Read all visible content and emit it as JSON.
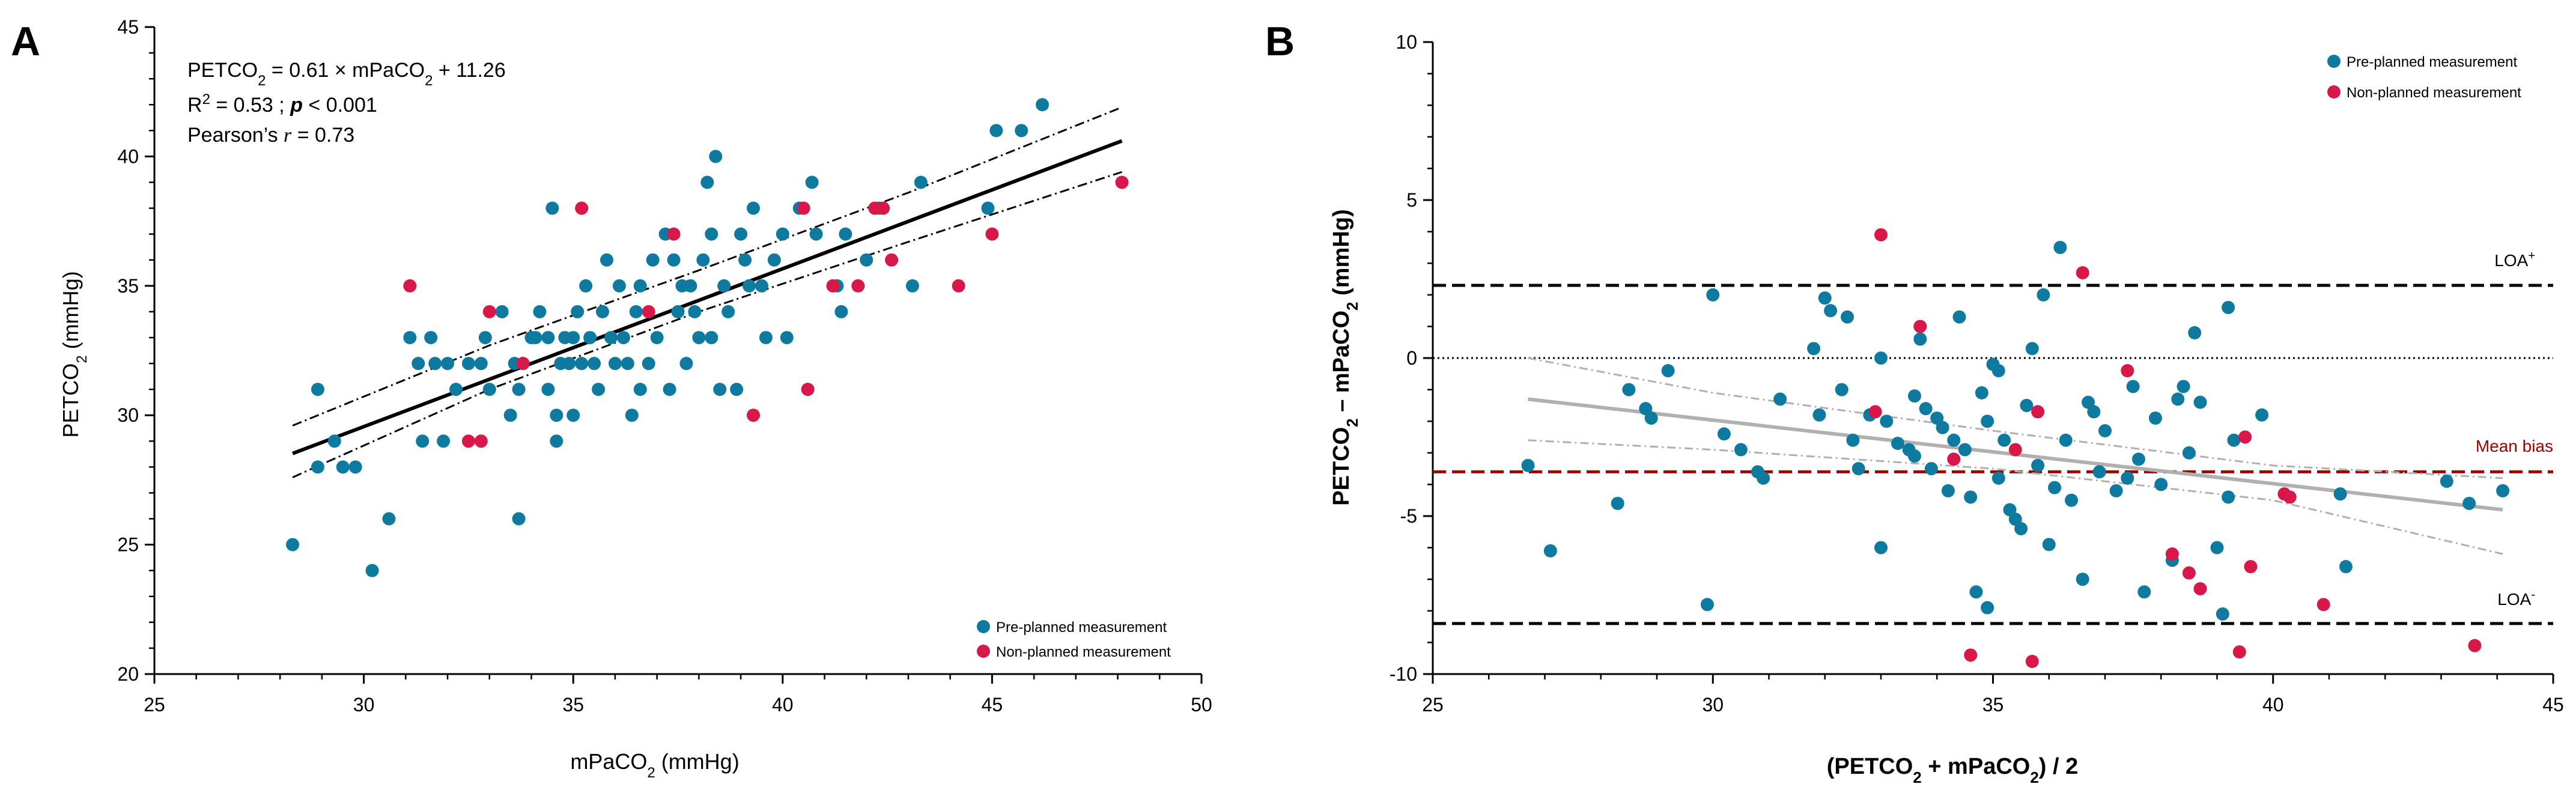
{
  "colors": {
    "pre_planned": "#0f7aa0",
    "non_planned": "#d9184a",
    "mean_bias": "#a00000",
    "trend": "#b0b0b0"
  },
  "chart_data": [
    {
      "type": "scatter",
      "panel_letter": "A",
      "xlabel": {
        "main": "mPaCO",
        "sub": "2",
        "post": " (mmHg)"
      },
      "ylabel": {
        "main": "PETCO",
        "sub": "2",
        "post": " (mmHg)"
      },
      "xlim": [
        25,
        50
      ],
      "ylim": [
        20,
        45
      ],
      "xticks": [
        25,
        30,
        35,
        40,
        45,
        50
      ],
      "yticks": [
        20,
        25,
        30,
        35,
        40,
        45
      ],
      "annotations": {
        "equation": {
          "a": "PETCO",
          "sub": "2",
          "b": " = 0.61 × mPaCO",
          "sub2": "2",
          "c": " + 11.26"
        },
        "r2": {
          "a": "R",
          "sup": "2",
          "b": " = 0.53 ; ",
          "p": "p",
          "c": " < 0.001"
        },
        "pearson": {
          "a": "Pearson’s ",
          "r": "r",
          "b": " = 0.73"
        }
      },
      "legend": {
        "placement": "bottom-right",
        "pre": "Pre-planned measurement",
        "non": "Non-planned measurement"
      },
      "regression": {
        "slope": 0.61,
        "intercept": 11.26,
        "x_range": [
          28.3,
          48.1
        ]
      },
      "ci_upper": [
        [
          28.3,
          29.6
        ],
        [
          33,
          32.7
        ],
        [
          38,
          35.6
        ],
        [
          43,
          38.6
        ],
        [
          48.1,
          41.9
        ]
      ],
      "ci_lower": [
        [
          28.3,
          27.6
        ],
        [
          33,
          31.0
        ],
        [
          38,
          34.0
        ],
        [
          43,
          36.7
        ],
        [
          48.1,
          39.4
        ]
      ],
      "series": [
        {
          "name": "Pre-planned measurement",
          "points": [
            [
              28.3,
              25
            ],
            [
              28.9,
              31
            ],
            [
              28.9,
              28
            ],
            [
              29.3,
              29
            ],
            [
              29.5,
              28
            ],
            [
              29.8,
              28
            ],
            [
              30.2,
              24
            ],
            [
              30.6,
              26
            ],
            [
              31.1,
              33
            ],
            [
              31.3,
              32
            ],
            [
              31.4,
              29
            ],
            [
              31.6,
              33
            ],
            [
              31.7,
              32
            ],
            [
              31.9,
              29
            ],
            [
              32.0,
              32
            ],
            [
              32.2,
              31
            ],
            [
              32.5,
              32
            ],
            [
              32.8,
              32
            ],
            [
              32.9,
              33
            ],
            [
              33.0,
              31
            ],
            [
              33.3,
              34
            ],
            [
              33.5,
              30
            ],
            [
              33.6,
              32
            ],
            [
              33.7,
              26
            ],
            [
              33.7,
              31
            ],
            [
              33.8,
              32
            ],
            [
              34.0,
              33
            ],
            [
              34.1,
              33
            ],
            [
              34.2,
              34
            ],
            [
              34.4,
              33
            ],
            [
              34.4,
              31
            ],
            [
              34.5,
              38
            ],
            [
              34.6,
              30
            ],
            [
              34.6,
              29
            ],
            [
              34.7,
              32
            ],
            [
              34.8,
              33
            ],
            [
              34.9,
              32
            ],
            [
              35.0,
              33
            ],
            [
              35.0,
              30
            ],
            [
              35.1,
              34
            ],
            [
              35.2,
              32
            ],
            [
              35.3,
              35
            ],
            [
              35.4,
              33
            ],
            [
              35.5,
              32
            ],
            [
              35.6,
              31
            ],
            [
              35.7,
              34
            ],
            [
              35.8,
              36
            ],
            [
              35.9,
              33
            ],
            [
              36.0,
              32
            ],
            [
              36.1,
              35
            ],
            [
              36.2,
              33
            ],
            [
              36.3,
              32
            ],
            [
              36.4,
              30
            ],
            [
              36.5,
              34
            ],
            [
              36.6,
              35
            ],
            [
              36.6,
              31
            ],
            [
              36.8,
              32
            ],
            [
              36.9,
              36
            ],
            [
              37.0,
              33
            ],
            [
              37.2,
              37
            ],
            [
              37.3,
              31
            ],
            [
              37.4,
              36
            ],
            [
              37.5,
              34
            ],
            [
              37.6,
              35
            ],
            [
              37.7,
              32
            ],
            [
              37.8,
              35
            ],
            [
              37.9,
              34
            ],
            [
              38.0,
              33
            ],
            [
              38.1,
              36
            ],
            [
              38.2,
              39
            ],
            [
              38.3,
              37
            ],
            [
              38.3,
              33
            ],
            [
              38.4,
              40
            ],
            [
              38.5,
              31
            ],
            [
              38.6,
              35
            ],
            [
              38.7,
              34
            ],
            [
              38.9,
              31
            ],
            [
              39.0,
              37
            ],
            [
              39.1,
              36
            ],
            [
              39.2,
              35
            ],
            [
              39.3,
              38
            ],
            [
              39.5,
              35
            ],
            [
              39.6,
              33
            ],
            [
              39.8,
              36
            ],
            [
              40.0,
              37
            ],
            [
              40.1,
              33
            ],
            [
              40.4,
              38
            ],
            [
              40.7,
              39
            ],
            [
              40.8,
              37
            ],
            [
              41.3,
              35
            ],
            [
              41.4,
              34
            ],
            [
              41.5,
              37
            ],
            [
              42.0,
              36
            ],
            [
              42.3,
              38
            ],
            [
              43.1,
              35
            ],
            [
              43.3,
              39
            ],
            [
              44.9,
              38
            ],
            [
              45.1,
              41
            ],
            [
              45.7,
              41
            ],
            [
              46.2,
              42
            ]
          ]
        },
        {
          "name": "Non-planned measurement",
          "points": [
            [
              31.1,
              35
            ],
            [
              32.5,
              29
            ],
            [
              32.8,
              29
            ],
            [
              33.0,
              34
            ],
            [
              33.8,
              32
            ],
            [
              35.2,
              38
            ],
            [
              36.8,
              34
            ],
            [
              37.4,
              37
            ],
            [
              39.3,
              30
            ],
            [
              40.5,
              38
            ],
            [
              40.6,
              31
            ],
            [
              41.2,
              35
            ],
            [
              41.8,
              35
            ],
            [
              42.2,
              38
            ],
            [
              42.4,
              38
            ],
            [
              42.6,
              36
            ],
            [
              44.2,
              35
            ],
            [
              45.0,
              37
            ],
            [
              48.1,
              39
            ]
          ]
        }
      ]
    },
    {
      "type": "scatter",
      "panel_letter": "B",
      "xlabel": {
        "a": "(PETCO",
        "sub": "2",
        "b": " + mPaCO",
        "sub2": "2",
        "c": ") / 2"
      },
      "ylabel": {
        "a": "PETCO",
        "sub": "2",
        "b": " – mPaCO",
        "sub2": "2",
        "c": " (mmHg)"
      },
      "xlim": [
        25,
        45
      ],
      "ylim": [
        -10,
        10
      ],
      "xticks": [
        25,
        30,
        35,
        40,
        45
      ],
      "yticks": [
        -10,
        -5,
        0,
        5,
        10
      ],
      "legend": {
        "placement": "top-right",
        "pre": "Pre-planned measurement",
        "non": "Non-planned measurement"
      },
      "reference_lines": [
        {
          "name": "LOA+",
          "label_main": "LOA",
          "label_sup": "+",
          "y": 2.3,
          "style": "dashed"
        },
        {
          "name": "zero",
          "y": 0,
          "style": "dotted"
        },
        {
          "name": "Mean bias",
          "label": "Mean bias",
          "y": -3.6,
          "style": "dashed-red"
        },
        {
          "name": "LOA-",
          "label_main": "LOA",
          "label_sup": "-",
          "y": -8.4,
          "style": "dashed"
        }
      ],
      "trend": {
        "x_range": [
          26.7,
          44.1
        ],
        "y_range": [
          -1.3,
          -4.8
        ]
      },
      "trend_ci_upper": [
        [
          26.7,
          0.0
        ],
        [
          30,
          -1.1
        ],
        [
          35,
          -2.3
        ],
        [
          40,
          -3.4
        ],
        [
          44.1,
          -3.8
        ]
      ],
      "trend_ci_lower": [
        [
          26.7,
          -2.6
        ],
        [
          30,
          -2.9
        ],
        [
          35,
          -3.5
        ],
        [
          40,
          -4.5
        ],
        [
          44.1,
          -6.2
        ]
      ],
      "series": [
        {
          "name": "Pre-planned measurement",
          "points": [
            [
              26.7,
              -3.4
            ],
            [
              27.1,
              -6.1
            ],
            [
              28.3,
              -4.6
            ],
            [
              28.5,
              -1.0
            ],
            [
              28.8,
              -1.6
            ],
            [
              28.9,
              -1.9
            ],
            [
              29.2,
              -0.4
            ],
            [
              30.0,
              2.0
            ],
            [
              29.9,
              -7.8
            ],
            [
              30.2,
              -2.4
            ],
            [
              30.5,
              -2.9
            ],
            [
              30.8,
              -3.6
            ],
            [
              30.9,
              -3.8
            ],
            [
              31.2,
              -1.3
            ],
            [
              31.8,
              0.3
            ],
            [
              31.9,
              -1.8
            ],
            [
              32.0,
              1.9
            ],
            [
              32.1,
              1.5
            ],
            [
              32.3,
              -1.0
            ],
            [
              32.4,
              1.3
            ],
            [
              32.5,
              -2.6
            ],
            [
              32.6,
              -3.5
            ],
            [
              32.8,
              -1.8
            ],
            [
              33.0,
              0.0
            ],
            [
              33.0,
              -6.0
            ],
            [
              33.1,
              -2.0
            ],
            [
              33.3,
              -2.7
            ],
            [
              33.5,
              -2.9
            ],
            [
              33.6,
              -3.1
            ],
            [
              33.6,
              -1.2
            ],
            [
              33.7,
              0.6
            ],
            [
              33.8,
              -1.6
            ],
            [
              33.9,
              -3.5
            ],
            [
              34.0,
              -1.9
            ],
            [
              34.1,
              -2.2
            ],
            [
              34.2,
              -4.2
            ],
            [
              34.3,
              -2.6
            ],
            [
              34.4,
              1.3
            ],
            [
              34.5,
              -2.9
            ],
            [
              34.6,
              -4.4
            ],
            [
              34.7,
              -7.4
            ],
            [
              34.8,
              -1.1
            ],
            [
              34.9,
              -2.0
            ],
            [
              34.9,
              -7.9
            ],
            [
              35.0,
              -0.2
            ],
            [
              35.1,
              -0.4
            ],
            [
              35.1,
              -3.8
            ],
            [
              35.2,
              -2.6
            ],
            [
              35.3,
              -4.8
            ],
            [
              35.4,
              -5.1
            ],
            [
              35.5,
              -5.4
            ],
            [
              35.6,
              -1.5
            ],
            [
              35.7,
              0.3
            ],
            [
              35.8,
              -3.4
            ],
            [
              35.9,
              2.0
            ],
            [
              36.0,
              -5.9
            ],
            [
              36.1,
              -4.1
            ],
            [
              36.2,
              3.5
            ],
            [
              36.3,
              -2.6
            ],
            [
              36.4,
              -4.5
            ],
            [
              36.6,
              -7.0
            ],
            [
              36.7,
              -1.4
            ],
            [
              36.8,
              -1.7
            ],
            [
              36.9,
              -3.6
            ],
            [
              37.0,
              -2.3
            ],
            [
              37.2,
              -4.2
            ],
            [
              37.4,
              -3.8
            ],
            [
              37.5,
              -0.9
            ],
            [
              37.6,
              -3.2
            ],
            [
              37.7,
              -7.4
            ],
            [
              37.9,
              -1.9
            ],
            [
              38.0,
              -4.0
            ],
            [
              38.2,
              -6.4
            ],
            [
              38.3,
              -1.3
            ],
            [
              38.4,
              -0.9
            ],
            [
              38.5,
              -3.0
            ],
            [
              38.6,
              0.8
            ],
            [
              38.7,
              -1.4
            ],
            [
              39.0,
              -6.0
            ],
            [
              39.1,
              -8.1
            ],
            [
              39.2,
              -4.4
            ],
            [
              39.3,
              -2.6
            ],
            [
              39.2,
              1.6
            ],
            [
              39.8,
              -1.8
            ],
            [
              41.2,
              -4.3
            ],
            [
              41.3,
              -6.6
            ],
            [
              43.1,
              -3.9
            ],
            [
              43.5,
              -4.6
            ],
            [
              44.1,
              -4.2
            ]
          ]
        },
        {
          "name": "Non-planned measurement",
          "points": [
            [
              32.9,
              -1.7
            ],
            [
              33.0,
              3.9
            ],
            [
              33.7,
              1.0
            ],
            [
              34.3,
              -3.2
            ],
            [
              35.4,
              -2.9
            ],
            [
              35.7,
              -9.6
            ],
            [
              35.8,
              -1.7
            ],
            [
              36.6,
              2.7
            ],
            [
              37.4,
              -0.4
            ],
            [
              38.2,
              -6.2
            ],
            [
              38.5,
              -6.8
            ],
            [
              38.7,
              -7.3
            ],
            [
              39.4,
              -9.3
            ],
            [
              39.5,
              -2.5
            ],
            [
              40.2,
              -4.3
            ],
            [
              40.3,
              -4.4
            ],
            [
              40.9,
              -7.8
            ],
            [
              43.6,
              -9.1
            ],
            [
              34.6,
              -9.4
            ],
            [
              39.6,
              -6.6
            ]
          ]
        }
      ]
    }
  ]
}
